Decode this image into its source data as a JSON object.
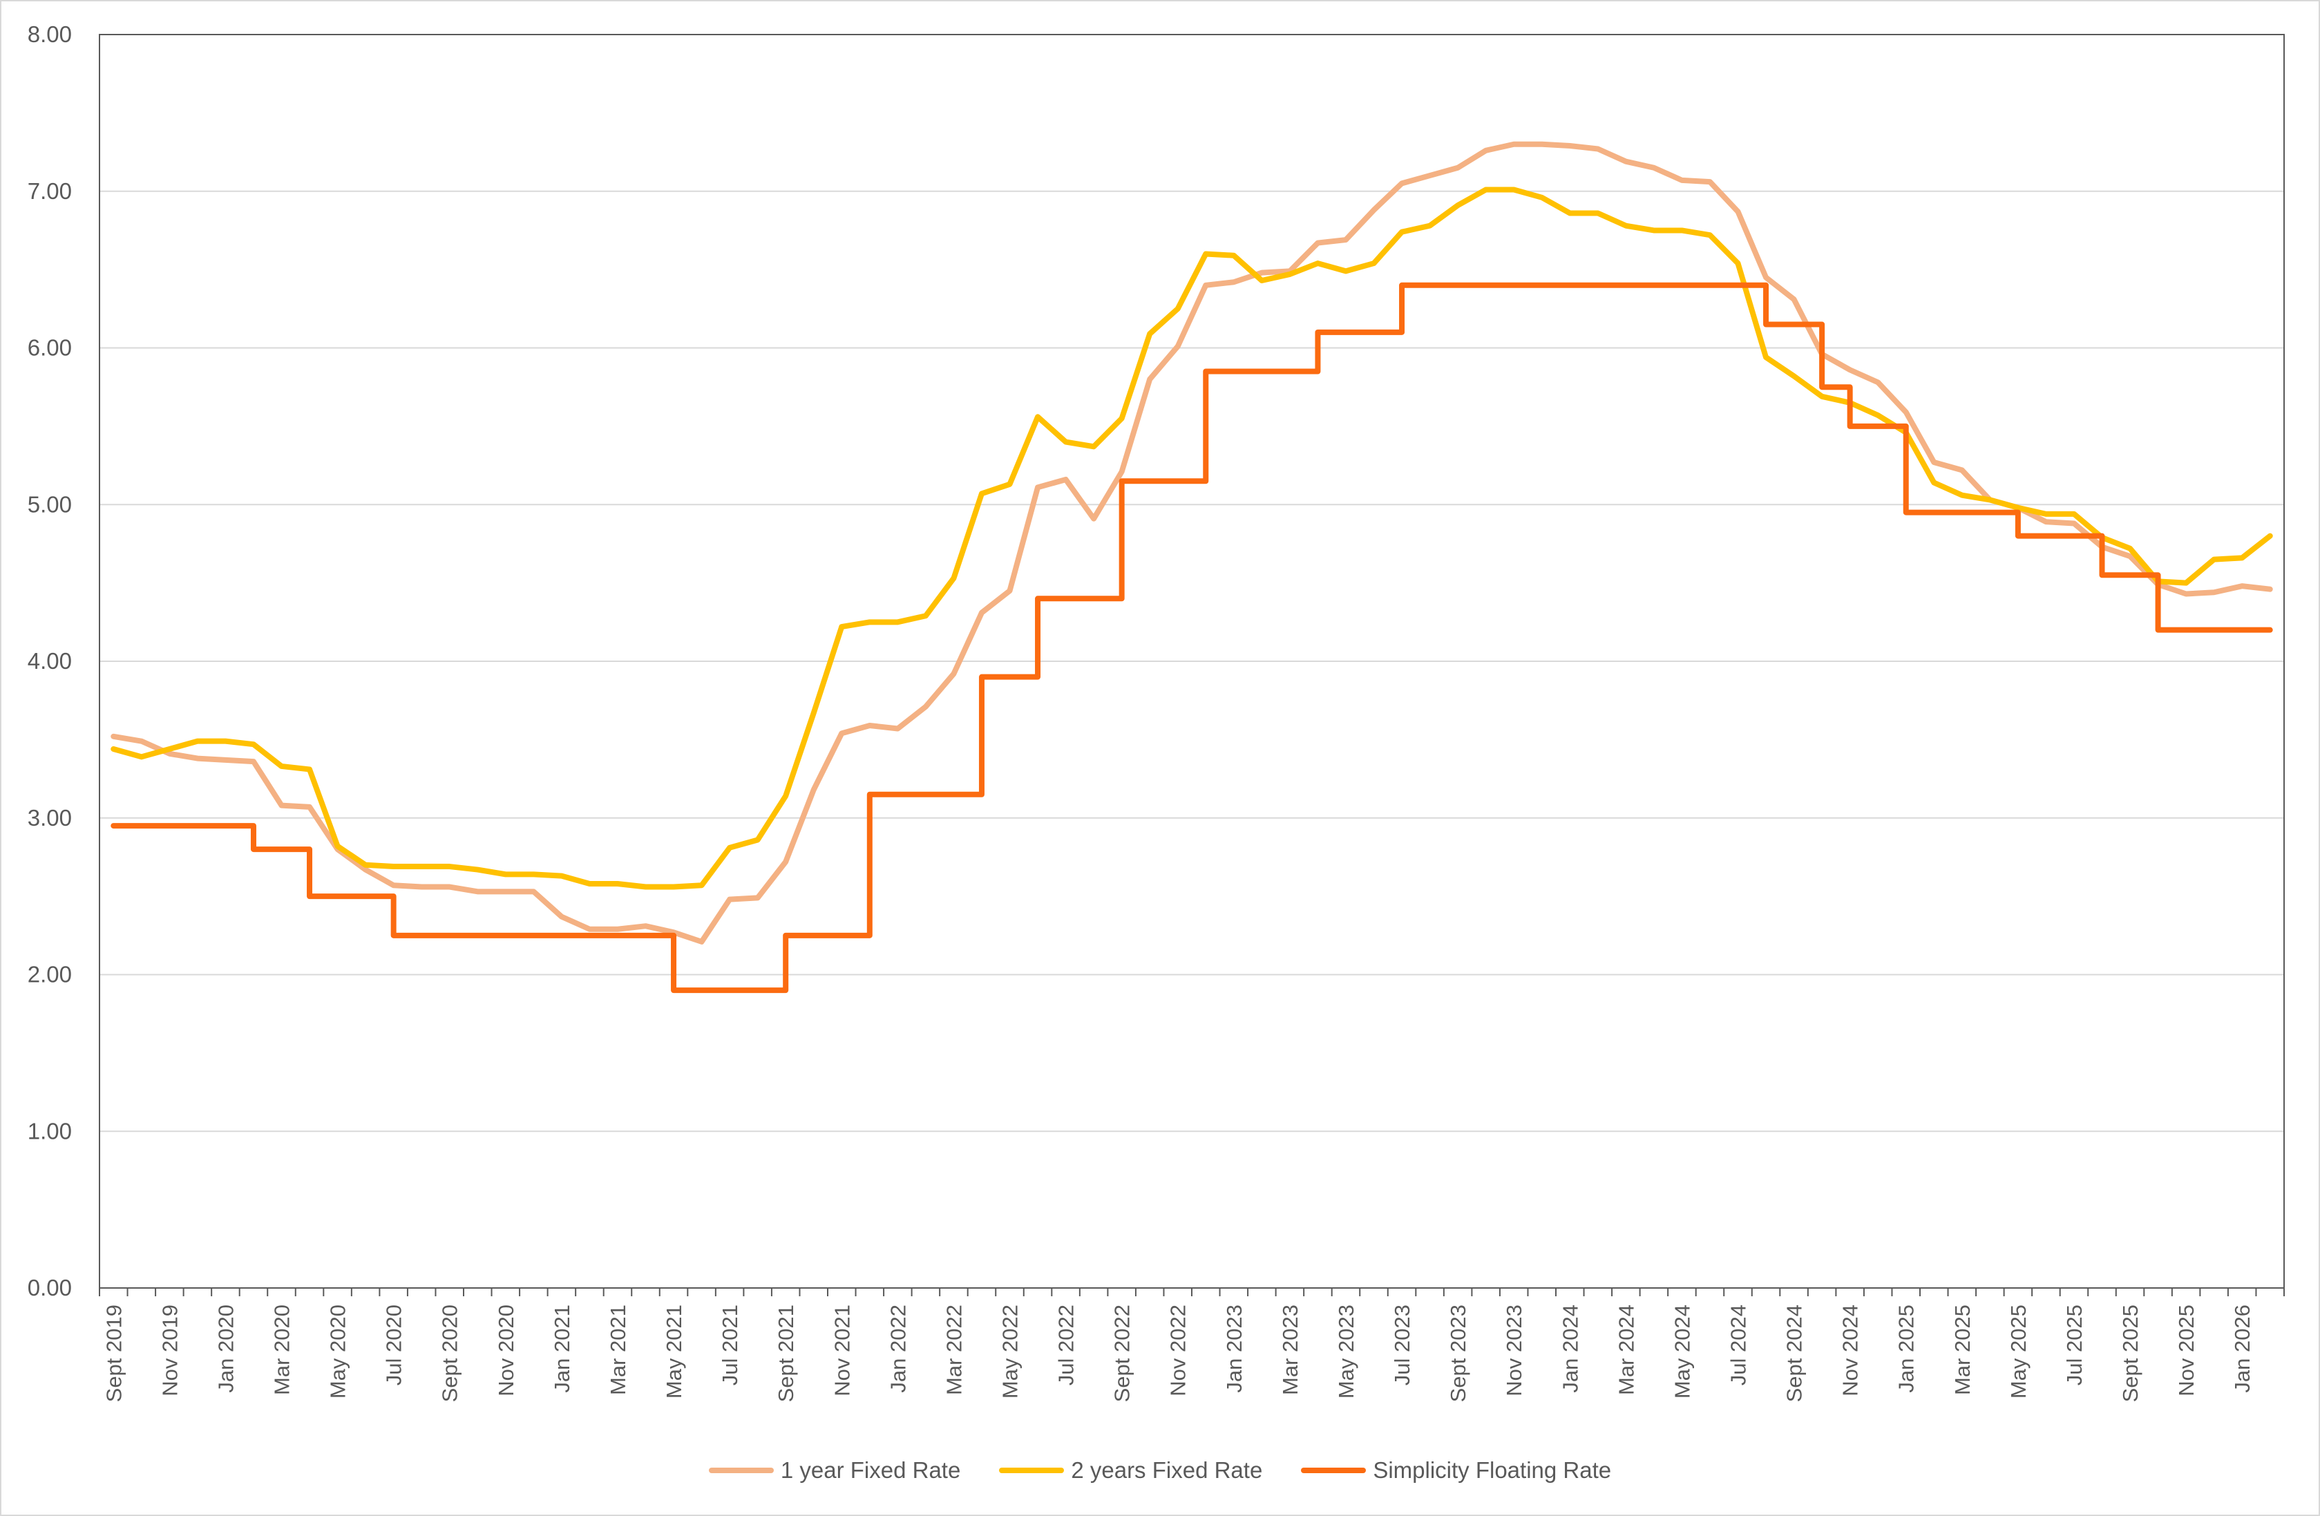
{
  "chart_data": {
    "type": "line",
    "title": "",
    "xlabel": "",
    "ylabel": "",
    "ylim": [
      0,
      8
    ],
    "yticks": [
      "0.00",
      "1.00",
      "2.00",
      "3.00",
      "4.00",
      "5.00",
      "6.00",
      "7.00",
      "8.00"
    ],
    "grid": true,
    "legend_position": "bottom",
    "x_tick_labels": [
      "Sept 2019",
      "Nov 2019",
      "Jan 2020",
      "Mar 2020",
      "May 2020",
      "Jul 2020",
      "Sept 2020",
      "Nov 2020",
      "Jan 2021",
      "Mar 2021",
      "May 2021",
      "Jul 2021",
      "Sept 2021",
      "Nov 2021",
      "Jan 2022",
      "Mar 2022",
      "May 2022",
      "Jul 2022",
      "Sept 2022",
      "Nov 2022",
      "Jan 2023",
      "Mar 2023",
      "May 2023",
      "Jul 2023",
      "Sept 2023",
      "Nov 2023",
      "Jan 2024",
      "Mar 2024",
      "May 2024",
      "Jul 2024",
      "Sept 2024",
      "Nov 2024",
      "Jan 2025",
      "Mar 2025",
      "May 2025",
      "Jul 2025",
      "Sept 2025",
      "Nov 2025",
      "Jan 2026"
    ],
    "x": [
      "Sep 2019",
      "Oct 2019",
      "Nov 2019",
      "Dec 2019",
      "Jan 2020",
      "Feb 2020",
      "Mar 2020",
      "Apr 2020",
      "May 2020",
      "Jun 2020",
      "Jul 2020",
      "Aug 2020",
      "Sep 2020",
      "Oct 2020",
      "Nov 2020",
      "Dec 2020",
      "Jan 2021",
      "Feb 2021",
      "Mar 2021",
      "Apr 2021",
      "May 2021",
      "Jun 2021",
      "Jul 2021",
      "Aug 2021",
      "Sep 2021",
      "Oct 2021",
      "Nov 2021",
      "Dec 2021",
      "Jan 2022",
      "Feb 2022",
      "Mar 2022",
      "Apr 2022",
      "May 2022",
      "Jun 2022",
      "Jul 2022",
      "Aug 2022",
      "Sep 2022",
      "Oct 2022",
      "Nov 2022",
      "Dec 2022",
      "Jan 2023",
      "Feb 2023",
      "Mar 2023",
      "Apr 2023",
      "May 2023",
      "Jun 2023",
      "Jul 2023",
      "Aug 2023",
      "Sep 2023",
      "Oct 2023",
      "Nov 2023",
      "Dec 2023",
      "Jan 2024",
      "Feb 2024",
      "Mar 2024",
      "Apr 2024",
      "May 2024",
      "Jun 2024",
      "Jul 2024",
      "Aug 2024",
      "Sep 2024",
      "Oct 2024",
      "Nov 2024",
      "Dec 2024",
      "Jan 2025",
      "Feb 2025",
      "Mar 2025",
      "Apr 2025",
      "May 2025",
      "Jun 2025",
      "Jul 2025",
      "Aug 2025",
      "Sep 2025",
      "Oct 2025",
      "Nov 2025",
      "Dec 2025",
      "Jan 2026",
      "Feb 2026"
    ],
    "series": [
      {
        "name": "1 year Fixed Rate",
        "color": "#f4b183",
        "step": false,
        "values": [
          3.52,
          3.49,
          3.41,
          3.38,
          3.37,
          3.36,
          3.08,
          3.07,
          2.8,
          2.67,
          2.57,
          2.56,
          2.56,
          2.53,
          2.53,
          2.53,
          2.37,
          2.29,
          2.29,
          2.31,
          2.27,
          2.21,
          2.48,
          2.49,
          2.72,
          3.18,
          3.54,
          3.59,
          3.57,
          3.71,
          3.92,
          4.31,
          4.45,
          5.11,
          5.16,
          4.91,
          5.21,
          5.8,
          6.01,
          6.4,
          6.42,
          6.48,
          6.49,
          6.67,
          6.69,
          6.88,
          7.05,
          7.1,
          7.15,
          7.26,
          7.3,
          7.3,
          7.29,
          7.27,
          7.19,
          7.15,
          7.07,
          7.06,
          6.87,
          6.45,
          6.31,
          5.96,
          5.86,
          5.78,
          5.59,
          5.27,
          5.22,
          5.03,
          4.98,
          4.89,
          4.88,
          4.73,
          4.67,
          4.49,
          4.43,
          4.44,
          4.48,
          4.46
        ]
      },
      {
        "name": "2 years Fixed Rate",
        "color": "#ffc000",
        "step": false,
        "values": [
          3.44,
          3.39,
          3.44,
          3.49,
          3.49,
          3.47,
          3.33,
          3.31,
          2.82,
          2.7,
          2.69,
          2.69,
          2.69,
          2.67,
          2.64,
          2.64,
          2.63,
          2.58,
          2.58,
          2.56,
          2.56,
          2.57,
          2.81,
          2.86,
          3.14,
          3.67,
          4.22,
          4.25,
          4.25,
          4.29,
          4.53,
          5.07,
          5.13,
          5.56,
          5.4,
          5.37,
          5.55,
          6.09,
          6.25,
          6.6,
          6.59,
          6.43,
          6.47,
          6.54,
          6.49,
          6.54,
          6.74,
          6.78,
          6.91,
          7.01,
          7.01,
          6.96,
          6.86,
          6.86,
          6.78,
          6.75,
          6.75,
          6.72,
          6.54,
          5.94,
          5.82,
          5.69,
          5.65,
          5.57,
          5.46,
          5.14,
          5.06,
          5.03,
          4.98,
          4.94,
          4.94,
          4.79,
          4.72,
          4.51,
          4.5,
          4.65,
          4.66,
          4.8
        ]
      },
      {
        "name": "Simplicity Floating Rate",
        "color": "#fb6b10",
        "step": true,
        "values": [
          2.95,
          2.95,
          2.95,
          2.95,
          2.95,
          2.95,
          2.8,
          2.8,
          2.5,
          2.5,
          2.5,
          2.25,
          2.25,
          2.25,
          2.25,
          2.25,
          2.25,
          2.25,
          2.25,
          2.25,
          2.25,
          1.9,
          1.9,
          1.9,
          1.9,
          2.25,
          2.25,
          2.25,
          3.15,
          3.15,
          3.15,
          3.15,
          3.9,
          3.9,
          4.4,
          4.4,
          4.4,
          5.15,
          5.15,
          5.15,
          5.85,
          5.85,
          5.85,
          5.85,
          6.1,
          6.1,
          6.1,
          6.4,
          6.4,
          6.4,
          6.4,
          6.4,
          6.4,
          6.4,
          6.4,
          6.4,
          6.4,
          6.4,
          6.4,
          6.4,
          6.15,
          6.15,
          5.75,
          5.5,
          5.5,
          4.95,
          4.95,
          4.95,
          4.95,
          4.8,
          4.8,
          4.8,
          4.55,
          4.55,
          4.2,
          4.2,
          4.2,
          4.2
        ]
      }
    ]
  }
}
